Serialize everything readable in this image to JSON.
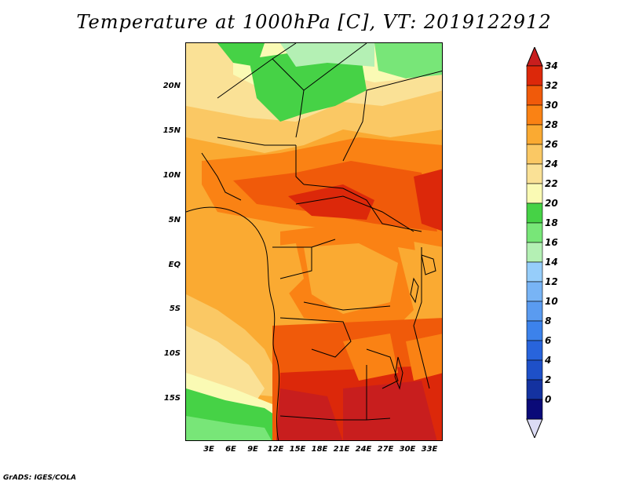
{
  "title": "Temperature at 1000hPa [C], VT: 2019122912",
  "footer": "GrADS: IGES/COLA",
  "lat_labels": [
    "20N",
    "15N",
    "10N",
    "5N",
    "EQ",
    "5S",
    "10S",
    "15S"
  ],
  "lon_labels": [
    "3E",
    "6E",
    "9E",
    "12E",
    "15E",
    "18E",
    "21E",
    "24E",
    "27E",
    "30E",
    "33E"
  ],
  "colorbar": {
    "labels": [
      "0",
      "2",
      "4",
      "6",
      "8",
      "10",
      "12",
      "14",
      "16",
      "18",
      "20",
      "22",
      "24",
      "26",
      "28",
      "30",
      "32",
      "34"
    ],
    "colors": [
      "#0a0a78",
      "#1432a0",
      "#1e50c8",
      "#2864dc",
      "#3c82eb",
      "#5a9bf0",
      "#78b4f5",
      "#96cdfa",
      "#b4f0b4",
      "#78e678",
      "#46d246",
      "#fafab4",
      "#fae196",
      "#fac864",
      "#faaa32",
      "#fa8214",
      "#f05a0a",
      "#dc280a",
      "#c81e1e"
    ]
  }
}
